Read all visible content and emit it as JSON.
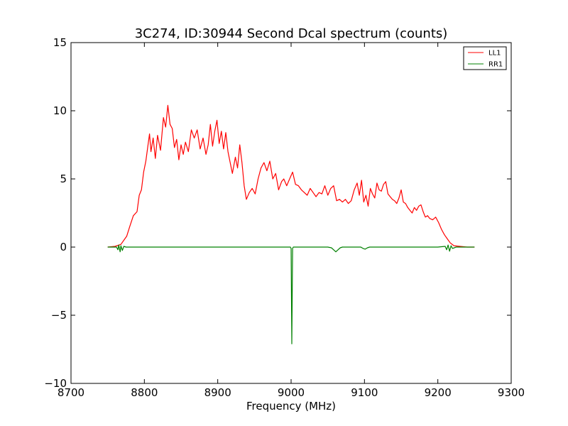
{
  "chart_data": {
    "type": "line",
    "title": "3C274, ID:30944 Second Dcal spectrum (counts)",
    "xlabel": "Frequency (MHz)",
    "ylabel": "",
    "xlim": [
      8700,
      9300
    ],
    "ylim": [
      -10,
      15
    ],
    "xticks": [
      8700,
      8800,
      8900,
      9000,
      9100,
      9200,
      9300
    ],
    "yticks": [
      -10,
      -5,
      0,
      5,
      10,
      15
    ],
    "grid": false,
    "legend_position": "top-right",
    "series": [
      {
        "name": "LL1",
        "color": "#ff0000",
        "points": [
          [
            8750,
            0
          ],
          [
            8760,
            0.05
          ],
          [
            8768,
            0.2
          ],
          [
            8772,
            0.5
          ],
          [
            8776,
            0.8
          ],
          [
            8780,
            1.5
          ],
          [
            8785,
            2.3
          ],
          [
            8790,
            2.6
          ],
          [
            8793,
            3.8
          ],
          [
            8796,
            4.2
          ],
          [
            8799,
            5.5
          ],
          [
            8802,
            6.3
          ],
          [
            8805,
            7.5
          ],
          [
            8807,
            8.3
          ],
          [
            8809,
            7.0
          ],
          [
            8812,
            8.0
          ],
          [
            8815,
            6.5
          ],
          [
            8818,
            8.2
          ],
          [
            8822,
            7.1
          ],
          [
            8826,
            9.5
          ],
          [
            8829,
            8.8
          ],
          [
            8832,
            10.4
          ],
          [
            8835,
            9.0
          ],
          [
            8838,
            8.7
          ],
          [
            8841,
            7.3
          ],
          [
            8844,
            7.9
          ],
          [
            8847,
            6.4
          ],
          [
            8850,
            7.5
          ],
          [
            8853,
            6.8
          ],
          [
            8856,
            7.7
          ],
          [
            8860,
            7.0
          ],
          [
            8864,
            8.6
          ],
          [
            8868,
            8.0
          ],
          [
            8872,
            8.6
          ],
          [
            8876,
            7.2
          ],
          [
            8880,
            8.0
          ],
          [
            8884,
            6.8
          ],
          [
            8887,
            7.5
          ],
          [
            8890,
            9.0
          ],
          [
            8893,
            7.4
          ],
          [
            8896,
            8.5
          ],
          [
            8899,
            9.3
          ],
          [
            8902,
            7.6
          ],
          [
            8905,
            8.5
          ],
          [
            8908,
            7.2
          ],
          [
            8911,
            8.4
          ],
          [
            8914,
            7.0
          ],
          [
            8917,
            6.2
          ],
          [
            8920,
            5.4
          ],
          [
            8924,
            6.6
          ],
          [
            8927,
            5.8
          ],
          [
            8930,
            7.5
          ],
          [
            8933,
            6.2
          ],
          [
            8936,
            4.5
          ],
          [
            8939,
            3.5
          ],
          [
            8943,
            4.0
          ],
          [
            8947,
            4.3
          ],
          [
            8951,
            3.9
          ],
          [
            8955,
            5.0
          ],
          [
            8959,
            5.8
          ],
          [
            8963,
            6.2
          ],
          [
            8967,
            5.6
          ],
          [
            8971,
            6.3
          ],
          [
            8975,
            5.0
          ],
          [
            8979,
            5.4
          ],
          [
            8983,
            4.2
          ],
          [
            8987,
            4.8
          ],
          [
            8990,
            5.0
          ],
          [
            8994,
            4.5
          ],
          [
            8998,
            5.0
          ],
          [
            9002,
            5.5
          ],
          [
            9006,
            4.6
          ],
          [
            9010,
            4.5
          ],
          [
            9014,
            4.2
          ],
          [
            9018,
            4.0
          ],
          [
            9022,
            3.8
          ],
          [
            9026,
            4.3
          ],
          [
            9030,
            4.0
          ],
          [
            9034,
            3.7
          ],
          [
            9038,
            4.0
          ],
          [
            9042,
            3.9
          ],
          [
            9046,
            4.5
          ],
          [
            9050,
            3.8
          ],
          [
            9054,
            4.3
          ],
          [
            9058,
            4.5
          ],
          [
            9062,
            3.4
          ],
          [
            9066,
            3.5
          ],
          [
            9070,
            3.3
          ],
          [
            9074,
            3.5
          ],
          [
            9078,
            3.2
          ],
          [
            9082,
            3.4
          ],
          [
            9086,
            4.2
          ],
          [
            9090,
            4.7
          ],
          [
            9093,
            3.8
          ],
          [
            9096,
            4.9
          ],
          [
            9099,
            3.3
          ],
          [
            9102,
            3.8
          ],
          [
            9105,
            3.0
          ],
          [
            9108,
            4.3
          ],
          [
            9111,
            3.9
          ],
          [
            9114,
            3.6
          ],
          [
            9117,
            4.7
          ],
          [
            9120,
            4.2
          ],
          [
            9123,
            4.1
          ],
          [
            9126,
            4.6
          ],
          [
            9129,
            4.8
          ],
          [
            9132,
            3.9
          ],
          [
            9135,
            3.7
          ],
          [
            9138,
            3.5
          ],
          [
            9141,
            3.4
          ],
          [
            9144,
            3.2
          ],
          [
            9147,
            3.6
          ],
          [
            9150,
            4.2
          ],
          [
            9153,
            3.3
          ],
          [
            9156,
            3.2
          ],
          [
            9159,
            2.9
          ],
          [
            9162,
            2.7
          ],
          [
            9165,
            2.5
          ],
          [
            9168,
            2.9
          ],
          [
            9171,
            2.7
          ],
          [
            9174,
            3.0
          ],
          [
            9177,
            3.1
          ],
          [
            9180,
            2.6
          ],
          [
            9183,
            2.2
          ],
          [
            9186,
            2.3
          ],
          [
            9189,
            2.1
          ],
          [
            9193,
            2.0
          ],
          [
            9197,
            2.2
          ],
          [
            9201,
            1.8
          ],
          [
            9205,
            1.3
          ],
          [
            9209,
            0.9
          ],
          [
            9213,
            0.6
          ],
          [
            9217,
            0.3
          ],
          [
            9222,
            0.1
          ],
          [
            9230,
            0.05
          ],
          [
            9240,
            0
          ],
          [
            9250,
            0
          ]
        ]
      },
      {
        "name": "RR1",
        "color": "#008000",
        "points": [
          [
            8750,
            0
          ],
          [
            8762,
            0
          ],
          [
            8764,
            -0.2
          ],
          [
            8765,
            0.15
          ],
          [
            8767,
            -0.35
          ],
          [
            8768,
            0.1
          ],
          [
            8770,
            -0.25
          ],
          [
            8772,
            0.05
          ],
          [
            8775,
            0
          ],
          [
            8800,
            0
          ],
          [
            8850,
            0
          ],
          [
            8900,
            0
          ],
          [
            8950,
            0
          ],
          [
            8999,
            0
          ],
          [
            9000,
            -0.1
          ],
          [
            9001,
            -7.1
          ],
          [
            9002,
            -0.1
          ],
          [
            9003,
            0
          ],
          [
            9050,
            0
          ],
          [
            9055,
            -0.05
          ],
          [
            9058,
            -0.2
          ],
          [
            9061,
            -0.35
          ],
          [
            9064,
            -0.2
          ],
          [
            9067,
            -0.05
          ],
          [
            9070,
            0
          ],
          [
            9095,
            0
          ],
          [
            9098,
            -0.1
          ],
          [
            9101,
            -0.15
          ],
          [
            9104,
            -0.05
          ],
          [
            9107,
            0
          ],
          [
            9200,
            0
          ],
          [
            9210,
            0.05
          ],
          [
            9212,
            -0.2
          ],
          [
            9214,
            0.15
          ],
          [
            9216,
            -0.3
          ],
          [
            9218,
            0.1
          ],
          [
            9220,
            -0.1
          ],
          [
            9225,
            0
          ],
          [
            9250,
            0
          ]
        ]
      }
    ]
  }
}
